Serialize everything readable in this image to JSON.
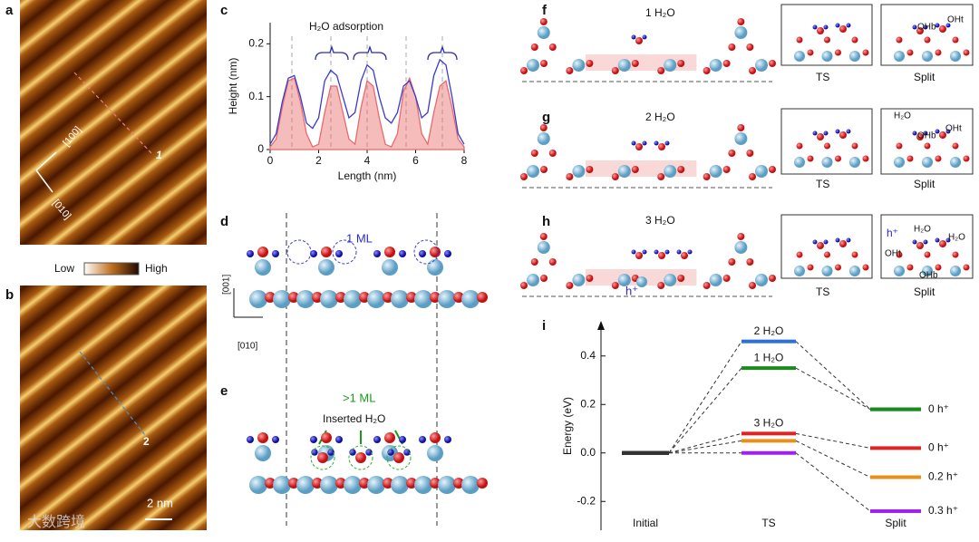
{
  "panels": {
    "a": {
      "letter": "a",
      "dir1": "[100]",
      "dir2": "[010]",
      "marker": "1"
    },
    "colorbar": {
      "low": "Low",
      "high": "High"
    },
    "b": {
      "letter": "b",
      "marker": "2",
      "scale": "2 nm"
    },
    "c": {
      "letter": "c"
    },
    "d": {
      "letter": "d",
      "label": "1 ML",
      "axis1": "[001]",
      "axis2": "[010]"
    },
    "e": {
      "letter": "e",
      "label": ">1 ML",
      "note": "Inserted H₂O"
    },
    "f": {
      "letter": "f",
      "label": "1 H₂O",
      "ts": "TS",
      "split": "Split",
      "split_labels": [
        "OHb",
        "OHt"
      ]
    },
    "g": {
      "letter": "g",
      "label": "2 H₂O",
      "ts": "TS",
      "split": "Split",
      "split_labels": [
        "H₂O",
        "OHb",
        "OHt"
      ]
    },
    "h": {
      "letter": "h",
      "label": "3 H₂O",
      "hole": "h⁺",
      "ts": "TS",
      "split": "Split",
      "split_labels": [
        "h⁺",
        "H₂O",
        "H₂O",
        "OHt",
        "OHb"
      ]
    },
    "i": {
      "letter": "i"
    },
    "watermark": "大数跨境"
  },
  "chart_data": [
    {
      "type": "line",
      "annotation": "H₂O adsorption",
      "x_label": "Length (nm)",
      "y_label": "Height (nm)",
      "x": [
        0,
        0.25,
        0.5,
        0.75,
        1,
        1.25,
        1.5,
        1.75,
        2,
        2.25,
        2.5,
        2.75,
        3,
        3.25,
        3.5,
        3.75,
        4,
        4.25,
        4.5,
        4.75,
        5,
        5.25,
        5.5,
        5.75,
        6,
        6.25,
        6.5,
        6.75,
        7,
        7.25,
        7.5,
        7.75,
        8
      ],
      "series": [
        {
          "color": "#e86a6a",
          "fill": true,
          "values": [
            0.005,
            0.02,
            0.08,
            0.13,
            0.135,
            0.09,
            0.03,
            0.005,
            0.01,
            0.07,
            0.12,
            0.12,
            0.07,
            0.02,
            0.01,
            0.08,
            0.13,
            0.12,
            0.06,
            0.01,
            0.005,
            0.03,
            0.11,
            0.135,
            0.1,
            0.03,
            0.01,
            0.07,
            0.12,
            0.13,
            0.08,
            0.02,
            0.005
          ]
        },
        {
          "color": "#3a3ad0",
          "fill": false,
          "values": [
            0.01,
            0.03,
            0.09,
            0.135,
            0.14,
            0.1,
            0.05,
            0.04,
            0.06,
            0.13,
            0.15,
            0.14,
            0.1,
            0.06,
            0.07,
            0.13,
            0.16,
            0.15,
            0.1,
            0.06,
            0.05,
            0.07,
            0.12,
            0.13,
            0.1,
            0.06,
            0.07,
            0.14,
            0.17,
            0.16,
            0.1,
            0.03,
            0.01
          ]
        }
      ],
      "xlim": [
        0,
        8
      ],
      "ylim": [
        0,
        0.24
      ],
      "xticks": [
        0,
        2,
        4,
        6,
        8
      ],
      "yticks": [
        0,
        0.1,
        0.2
      ]
    },
    {
      "type": "energy_diagram",
      "y_label": "Energy (eV)",
      "categories": [
        "Initial",
        "TS",
        "Split"
      ],
      "initial_color": "#333333",
      "series": [
        {
          "name": "2 H₂O",
          "color": "#2e6fe0",
          "values": [
            0,
            0.46,
            0.18
          ]
        },
        {
          "name": "1 H₂O",
          "color": "#1a8a1a",
          "values": [
            0,
            0.35,
            0.18
          ],
          "split_label": "0 h⁺"
        },
        {
          "name": "3 H₂O",
          "color": "#e02424",
          "values": [
            0,
            0.08,
            0.02
          ],
          "split_label": "0 h⁺"
        },
        {
          "color": "#e8901a",
          "values": [
            0,
            0.05,
            -0.1
          ],
          "split_label": "0.2 h⁺"
        },
        {
          "color": "#a020f0",
          "values": [
            0,
            0.0,
            -0.24
          ],
          "split_label": "0.3 h⁺"
        }
      ],
      "ylim": [
        -0.3,
        0.5
      ],
      "yticks": [
        {
          "value": -0.2,
          "label": "-0.2"
        },
        {
          "value": 0,
          "label": "0.0"
        },
        0.2,
        0.4
      ]
    }
  ]
}
